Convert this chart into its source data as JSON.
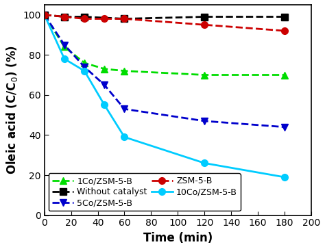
{
  "title": "",
  "xlabel": "Time (min)",
  "ylabel": "Oleic acid (C/C$_0$) (%)",
  "xlim": [
    0,
    195
  ],
  "ylim": [
    0,
    105
  ],
  "xticks": [
    0,
    20,
    40,
    60,
    80,
    100,
    120,
    140,
    160,
    180,
    200
  ],
  "yticks": [
    0,
    20,
    40,
    60,
    80,
    100
  ],
  "series": [
    {
      "label": "1Co/ZSM-5-B",
      "color": "#00dd00",
      "marker": "^",
      "linestyle": "--",
      "x": [
        0,
        15,
        30,
        45,
        60,
        120,
        180
      ],
      "y": [
        100,
        84,
        76,
        73,
        72,
        70,
        70
      ]
    },
    {
      "label": "5Co/ZSM-5-B",
      "color": "#0000cc",
      "marker": "v",
      "linestyle": "--",
      "x": [
        0,
        15,
        30,
        45,
        60,
        120,
        180
      ],
      "y": [
        100,
        85,
        74,
        65,
        53,
        47,
        44
      ]
    },
    {
      "label": "10Co/ZSM-5-B",
      "color": "#00ccff",
      "marker": "o",
      "linestyle": "-",
      "x": [
        0,
        15,
        30,
        45,
        60,
        120,
        180
      ],
      "y": [
        100,
        78,
        72,
        55,
        39,
        26,
        19
      ]
    },
    {
      "label": "Without catalyst",
      "color": "#000000",
      "marker": "s",
      "linestyle": "--",
      "x": [
        0,
        15,
        30,
        60,
        120,
        180
      ],
      "y": [
        100,
        99,
        99,
        98,
        99,
        99
      ]
    },
    {
      "label": "ZSM-5-B",
      "color": "#cc0000",
      "marker": "o",
      "linestyle": "--",
      "x": [
        0,
        15,
        30,
        45,
        60,
        120,
        180
      ],
      "y": [
        100,
        99,
        98,
        98,
        98,
        95,
        92
      ]
    }
  ],
  "markersize": 7,
  "linewidth": 2.0,
  "fontsize_axis_label": 12,
  "fontsize_tick": 10,
  "fontsize_legend": 9
}
